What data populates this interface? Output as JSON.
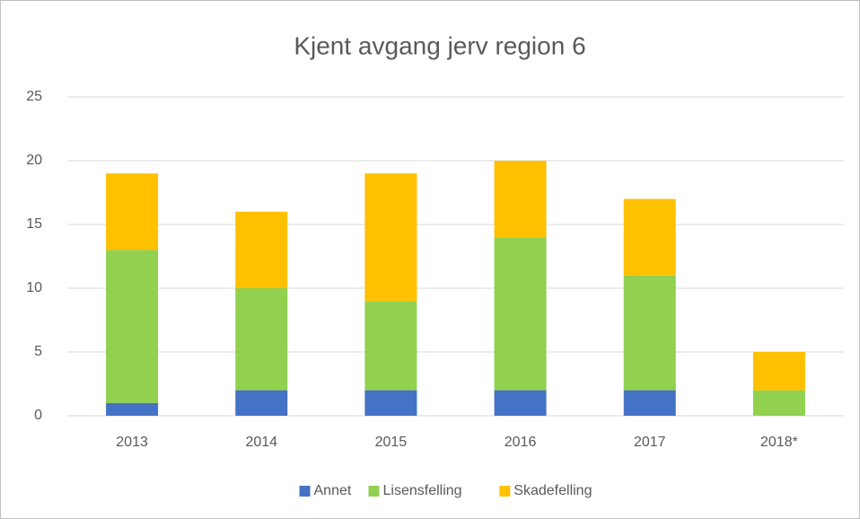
{
  "chart_data": {
    "type": "bar",
    "stacked": true,
    "title": "Kjent avgang jerv region 6",
    "categories": [
      "2013",
      "2014",
      "2015",
      "2016",
      "2017",
      "2018*"
    ],
    "series": [
      {
        "name": "Annet",
        "color": "#4472c4",
        "values": [
          1,
          2,
          2,
          2,
          2,
          0
        ]
      },
      {
        "name": "Lisensfelling",
        "color": "#92d050",
        "values": [
          12,
          8,
          7,
          12,
          9,
          2
        ]
      },
      {
        "name": "Skadefelling",
        "color": "#ffc000",
        "values": [
          6,
          6,
          10,
          6,
          6,
          3
        ]
      }
    ],
    "ylim": [
      0,
      25
    ],
    "yticks": [
      0,
      5,
      10,
      15,
      20,
      25
    ],
    "grid": true,
    "legend": "bottom"
  }
}
